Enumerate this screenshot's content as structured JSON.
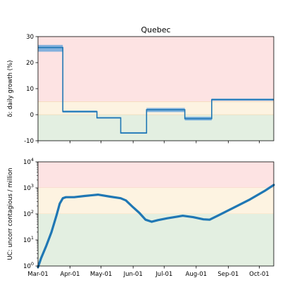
{
  "chart_data": [
    {
      "type": "line",
      "title": "Quebec",
      "ylabel": "δ: daily growth (%)",
      "xlabel": "",
      "ylim": [
        -10,
        30
      ],
      "yticks": [
        "30",
        "20",
        "10",
        "0",
        "-10"
      ],
      "ytick_values": [
        30,
        20,
        10,
        0,
        -10
      ],
      "x_day_range": [
        0,
        228
      ],
      "bands": [
        {
          "name": "high",
          "from": 5,
          "to": 30,
          "color": "#fde3e3"
        },
        {
          "name": "moderate",
          "from": 0,
          "to": 5,
          "color": "#fdf3e1"
        },
        {
          "name": "low",
          "from": -10,
          "to": 0,
          "color": "#e3efe1"
        }
      ],
      "series": [
        {
          "name": "daily growth",
          "color": "#1f77b4",
          "steps": [
            {
              "start": 0,
              "end": 24,
              "value": 25.8,
              "band": [
                24.2,
                26.8
              ]
            },
            {
              "start": 24,
              "end": 57,
              "value": 1.2,
              "band": [
                0.8,
                1.6
              ]
            },
            {
              "start": 57,
              "end": 80,
              "value": -1.2,
              "band": [
                -1.5,
                -0.9
              ]
            },
            {
              "start": 80,
              "end": 105,
              "value": -7.0,
              "band": [
                -7.3,
                -6.7
              ]
            },
            {
              "start": 105,
              "end": 142,
              "value": 1.9,
              "band": [
                1.0,
                2.6
              ]
            },
            {
              "start": 142,
              "end": 168,
              "value": -1.5,
              "band": [
                -2.2,
                -0.8
              ]
            },
            {
              "start": 168,
              "end": 228,
              "value": 5.8,
              "band": [
                5.4,
                6.2
              ]
            }
          ]
        }
      ]
    },
    {
      "type": "line",
      "title": "",
      "ylabel": "UC: uncorr contagious / million",
      "xlabel": "",
      "yscale": "log",
      "ylim": [
        1,
        10000
      ],
      "yticks": [
        {
          "base": "10",
          "exp": "0"
        },
        {
          "base": "10",
          "exp": "1"
        },
        {
          "base": "10",
          "exp": "2"
        },
        {
          "base": "10",
          "exp": "3"
        },
        {
          "base": "10",
          "exp": "4"
        }
      ],
      "ytick_values": [
        1,
        10,
        100,
        1000,
        10000
      ],
      "x_day_range": [
        0,
        228
      ],
      "bands": [
        {
          "name": "high",
          "from": 1000,
          "to": 10000,
          "color": "#fde3e3"
        },
        {
          "name": "moderate",
          "from": 100,
          "to": 1000,
          "color": "#fdf3e1"
        },
        {
          "name": "low",
          "from": 1,
          "to": 100,
          "color": "#e3efe1"
        }
      ],
      "series": [
        {
          "name": "uncorrected contagious per million",
          "color": "#1f77b4",
          "points": [
            [
              0,
              0.9
            ],
            [
              3,
              2
            ],
            [
              8,
              6
            ],
            [
              13,
              20
            ],
            [
              18,
              90
            ],
            [
              21,
              250
            ],
            [
              24,
              400
            ],
            [
              27,
              440
            ],
            [
              35,
              440
            ],
            [
              45,
              490
            ],
            [
              58,
              550
            ],
            [
              70,
              460
            ],
            [
              80,
              400
            ],
            [
              85,
              330
            ],
            [
              92,
              180
            ],
            [
              98,
              110
            ],
            [
              104,
              60
            ],
            [
              110,
              50
            ],
            [
              116,
              58
            ],
            [
              125,
              68
            ],
            [
              140,
              85
            ],
            [
              150,
              75
            ],
            [
              160,
              62
            ],
            [
              166,
              60
            ],
            [
              175,
              90
            ],
            [
              190,
              180
            ],
            [
              205,
              360
            ],
            [
              220,
              800
            ],
            [
              228,
              1300
            ]
          ]
        }
      ],
      "xticks": [
        {
          "label": "Mar-01",
          "day": 0
        },
        {
          "label": "Apr-01",
          "day": 31
        },
        {
          "label": "May-01",
          "day": 61
        },
        {
          "label": "Jun-01",
          "day": 92
        },
        {
          "label": "Jul-01",
          "day": 122
        },
        {
          "label": "Aug-01",
          "day": 153
        },
        {
          "label": "Sep-01",
          "day": 184
        },
        {
          "label": "Oct-01",
          "day": 214
        }
      ]
    }
  ]
}
